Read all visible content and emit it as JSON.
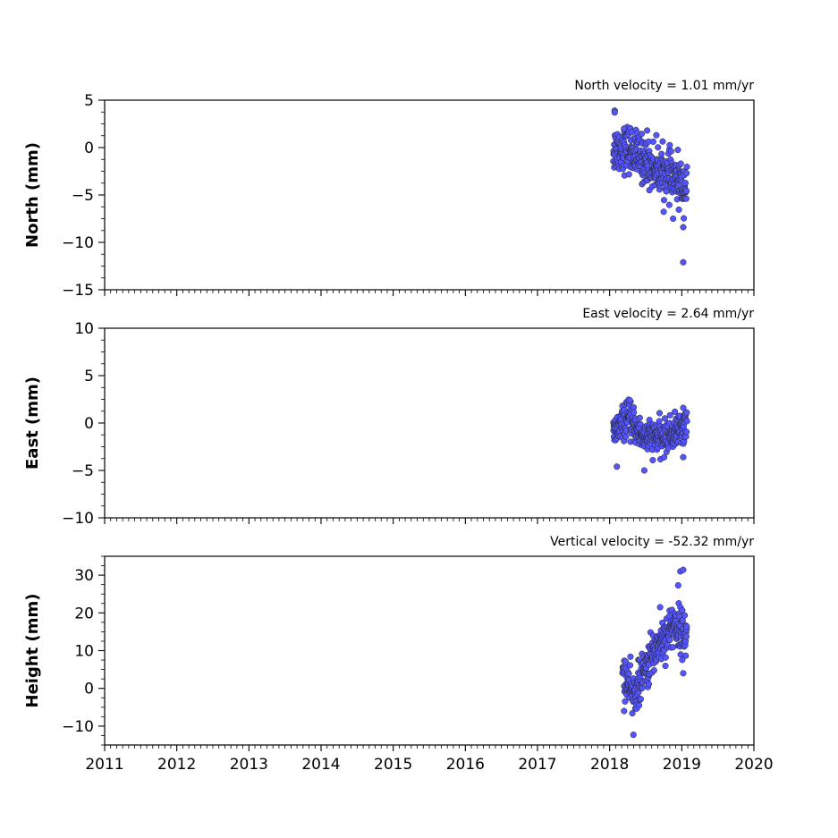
{
  "chart_data": [
    {
      "type": "scatter",
      "title": "North velocity = 1.01 mm/yr",
      "ylabel": "North (mm)",
      "xlabel": "",
      "xlim": [
        2011,
        2020
      ],
      "ylim": [
        -15,
        5
      ],
      "yticks": [
        "−15",
        "−10",
        "−5",
        "0",
        "5"
      ],
      "ytick_values": [
        -15,
        -10,
        -5,
        0,
        5
      ],
      "xtick_labels": [],
      "marker_color": "#5555ff",
      "edge_color": "#222222",
      "grid": false,
      "trend": [
        [
          2018.05,
          -0.2
        ],
        [
          2018.25,
          0.0
        ],
        [
          2018.5,
          -1.5
        ],
        [
          2018.75,
          -2.6
        ],
        [
          2019.05,
          -4.1
        ]
      ],
      "spread": 1.2,
      "outliers": [
        [
          2018.07,
          3.9
        ],
        [
          2018.07,
          3.7
        ],
        [
          2018.2,
          2.0
        ],
        [
          2018.52,
          1.8
        ],
        [
          2019.02,
          -8.4
        ],
        [
          2019.02,
          -12.1
        ],
        [
          2018.88,
          -7.5
        ]
      ],
      "series": [
        {
          "name": "",
          "x_range": [
            2018.05,
            2019.07
          ],
          "n_points": 340
        }
      ]
    },
    {
      "type": "scatter",
      "title": "East velocity = 2.64 mm/yr",
      "ylabel": "East (mm)",
      "xlabel": "",
      "xlim": [
        2011,
        2020
      ],
      "ylim": [
        -10,
        10
      ],
      "yticks": [
        "−10",
        "−5",
        "0",
        "5",
        "10"
      ],
      "ytick_values": [
        -10,
        -5,
        0,
        5,
        10
      ],
      "xtick_labels": [],
      "marker_color": "#5555ff",
      "edge_color": "#222222",
      "grid": false,
      "trend": [
        [
          2018.05,
          -1.2
        ],
        [
          2018.25,
          0.6
        ],
        [
          2018.45,
          -1.4
        ],
        [
          2018.75,
          -1.6
        ],
        [
          2019.05,
          -0.3
        ]
      ],
      "spread": 0.85,
      "outliers": [
        [
          2018.1,
          -4.6
        ],
        [
          2018.48,
          -5.0
        ],
        [
          2019.02,
          -3.6
        ],
        [
          2019.02,
          1.6
        ],
        [
          2018.28,
          2.4
        ]
      ],
      "series": [
        {
          "name": "",
          "x_range": [
            2018.05,
            2019.07
          ],
          "n_points": 340
        }
      ]
    },
    {
      "type": "scatter",
      "title": "Vertical velocity = -52.32 mm/yr",
      "ylabel": "Height (mm)",
      "xlabel": "",
      "xlim": [
        2011,
        2020
      ],
      "ylim": [
        -15,
        35
      ],
      "yticks": [
        "−10",
        "0",
        "10",
        "20",
        "30"
      ],
      "ytick_values": [
        -10,
        0,
        10,
        20,
        30
      ],
      "xtick_labels": [
        "2011",
        "2012",
        "2013",
        "2014",
        "2015",
        "2016",
        "2017",
        "2018",
        "2019",
        "2020"
      ],
      "xtick_values": [
        2011,
        2012,
        2013,
        2014,
        2015,
        2016,
        2017,
        2018,
        2019,
        2020
      ],
      "marker_color": "#5555ff",
      "edge_color": "#222222",
      "grid": false,
      "trend": [
        [
          2018.18,
          5.0
        ],
        [
          2018.32,
          -2.0
        ],
        [
          2018.45,
          3.0
        ],
        [
          2018.65,
          11.0
        ],
        [
          2018.9,
          17.0
        ],
        [
          2019.05,
          14.0
        ]
      ],
      "spread": 2.8,
      "outliers": [
        [
          2018.2,
          -6.0
        ],
        [
          2018.33,
          -12.3
        ],
        [
          2018.7,
          21.5
        ],
        [
          2018.98,
          31.0
        ],
        [
          2019.02,
          31.4
        ],
        [
          2019.02,
          4.0
        ],
        [
          2018.95,
          27.3
        ]
      ],
      "series": [
        {
          "name": "",
          "x_range": [
            2018.18,
            2019.07
          ],
          "n_points": 300
        }
      ]
    }
  ]
}
